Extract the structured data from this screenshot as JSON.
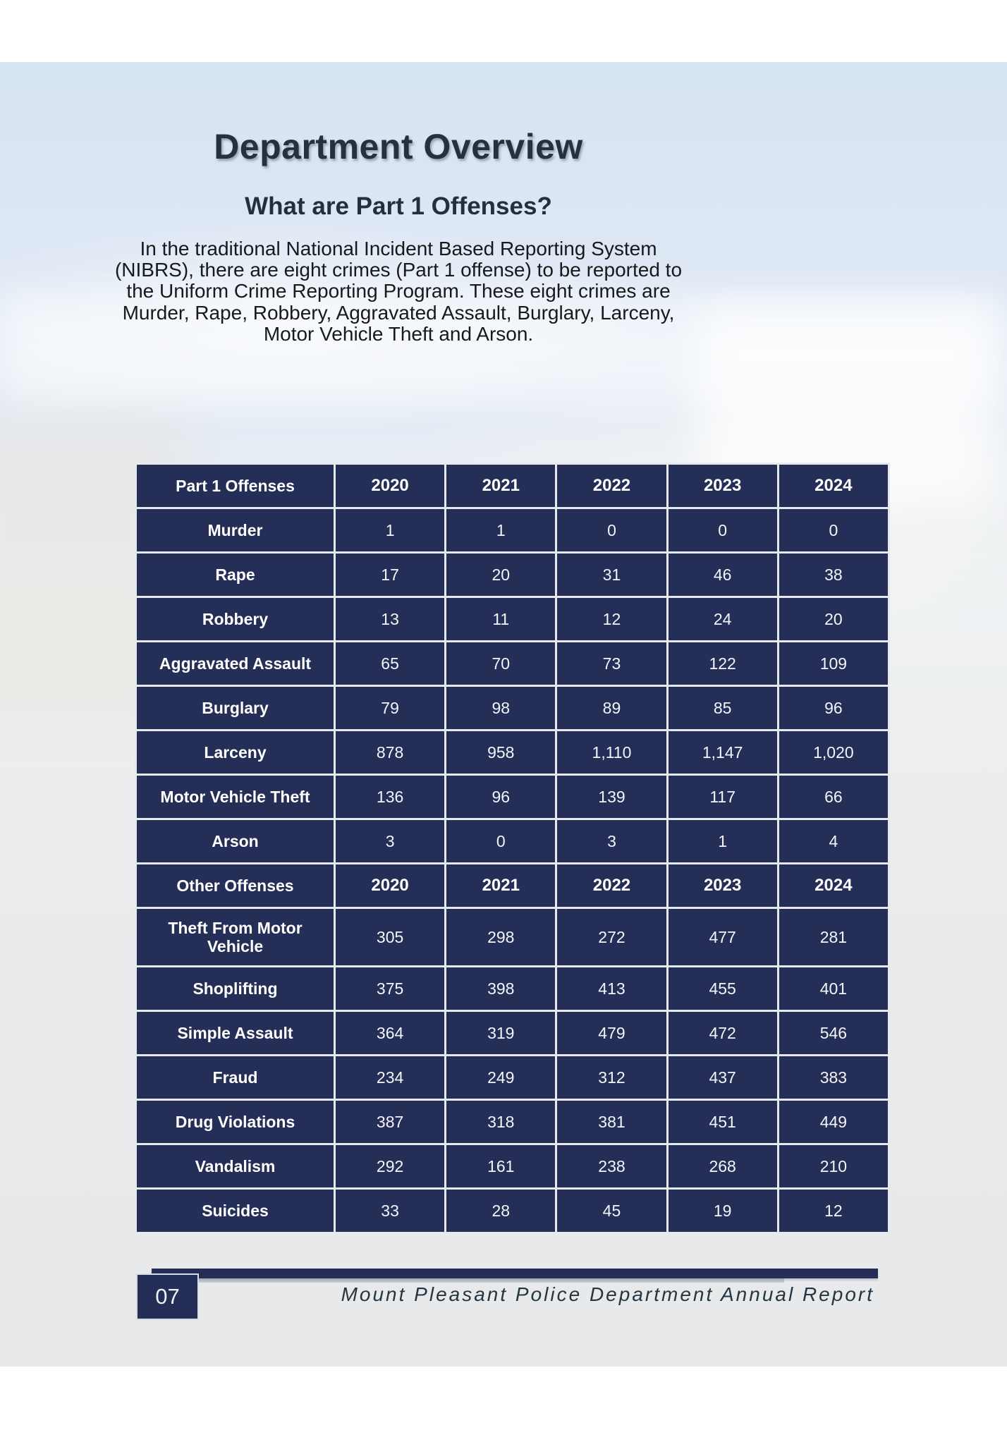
{
  "page": {
    "title": "Department Overview",
    "subtitle": "What are Part 1 Offenses?",
    "intro": "In the traditional National Incident Based Reporting System (NIBRS), there are eight crimes (Part 1 offense) to be reported to the Uniform Crime Reporting Program. These eight crimes are Murder, Rape, Robbery, Aggravated Assault, Burglary, Larceny, Motor Vehicle Theft and Arson."
  },
  "table": {
    "sections": [
      {
        "header_label": "Part 1 Offenses",
        "years": [
          "2020",
          "2021",
          "2022",
          "2023",
          "2024"
        ],
        "rows": [
          {
            "label": "Murder",
            "values": [
              "1",
              "1",
              "0",
              "0",
              "0"
            ]
          },
          {
            "label": "Rape",
            "values": [
              "17",
              "20",
              "31",
              "46",
              "38"
            ]
          },
          {
            "label": "Robbery",
            "values": [
              "13",
              "11",
              "12",
              "24",
              "20"
            ]
          },
          {
            "label": "Aggravated Assault",
            "values": [
              "65",
              "70",
              "73",
              "122",
              "109"
            ]
          },
          {
            "label": "Burglary",
            "values": [
              "79",
              "98",
              "89",
              "85",
              "96"
            ]
          },
          {
            "label": "Larceny",
            "values": [
              "878",
              "958",
              "1,110",
              "1,147",
              "1,020"
            ]
          },
          {
            "label": "Motor Vehicle Theft",
            "values": [
              "136",
              "96",
              "139",
              "117",
              "66"
            ]
          },
          {
            "label": "Arson",
            "values": [
              "3",
              "0",
              "3",
              "1",
              "4"
            ]
          }
        ]
      },
      {
        "header_label": "Other Offenses",
        "years": [
          "2020",
          "2021",
          "2022",
          "2023",
          "2024"
        ],
        "rows": [
          {
            "label": "Theft From Motor Vehicle",
            "values": [
              "305",
              "298",
              "272",
              "477",
              "281"
            ]
          },
          {
            "label": "Shoplifting",
            "values": [
              "375",
              "398",
              "413",
              "455",
              "401"
            ]
          },
          {
            "label": "Simple Assault",
            "values": [
              "364",
              "319",
              "479",
              "472",
              "546"
            ]
          },
          {
            "label": "Fraud",
            "values": [
              "234",
              "249",
              "312",
              "437",
              "383"
            ]
          },
          {
            "label": "Drug Violations",
            "values": [
              "387",
              "318",
              "381",
              "451",
              "449"
            ]
          },
          {
            "label": "Vandalism",
            "values": [
              "292",
              "161",
              "238",
              "268",
              "210"
            ]
          },
          {
            "label": "Suicides",
            "values": [
              "33",
              "28",
              "45",
              "19",
              "12"
            ]
          }
        ]
      }
    ]
  },
  "footer": {
    "page_number": "07",
    "report_title": "Mount Pleasant Police Department Annual Report"
  },
  "colors": {
    "navy": "#242e56",
    "border": "#e8e9ee",
    "title_text": "#233140"
  }
}
